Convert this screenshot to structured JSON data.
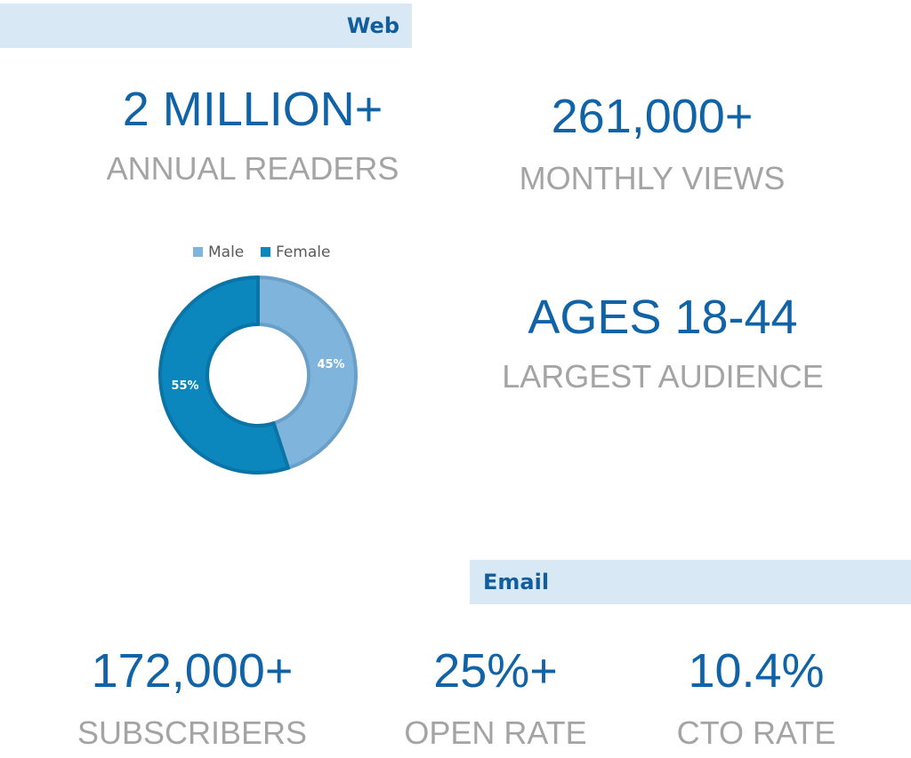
{
  "web": {
    "banner_label": "Web",
    "annual_readers": {
      "value": "2 MILLION+",
      "label": "ANNUAL READERS"
    },
    "monthly_views": {
      "value": "261,000+",
      "label": "MONTHLY VIEWS"
    },
    "largest_audience": {
      "value": "AGES 18-44",
      "label": "LARGEST AUDIENCE"
    }
  },
  "email": {
    "banner_label": "Email",
    "subscribers": {
      "value": "172,000+",
      "label": "SUBSCRIBERS"
    },
    "open_rate": {
      "value": "25%+",
      "label": "OPEN RATE"
    },
    "cto_rate": {
      "value": "10.4%",
      "label": "CTO RATE"
    }
  },
  "colors": {
    "male": "#7fb4dc",
    "female": "#0b87bd",
    "male_border": "#6a9fc8",
    "female_border": "#0a74a6",
    "stat_value": "#0f63a6",
    "stat_label": "#a4a4a4",
    "banner_bg": "#d9e8f5",
    "banner_text": "#125e9c"
  },
  "chart_data": {
    "type": "pie",
    "variant": "donut",
    "categories": [
      "Male",
      "Female"
    ],
    "values": [
      45,
      55
    ],
    "value_labels": [
      "45%",
      "55%"
    ],
    "legend": "top"
  }
}
